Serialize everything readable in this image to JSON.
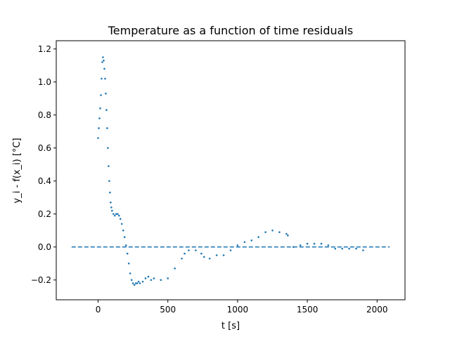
{
  "chart_data": {
    "type": "scatter",
    "title": "Temperature as a function of time residuals",
    "xlabel": "t [s]",
    "ylabel": "y_i - f(x_i) [°C]",
    "xlim": [
      -300,
      2200
    ],
    "ylim": [
      -0.32,
      1.25
    ],
    "xticks": [
      {
        "value": 0,
        "label": "0"
      },
      {
        "value": 500,
        "label": "500"
      },
      {
        "value": 1000,
        "label": "1000"
      },
      {
        "value": 1500,
        "label": "1500"
      },
      {
        "value": 2000,
        "label": "2000"
      }
    ],
    "yticks": [
      {
        "value": -0.2,
        "label": "−0.2"
      },
      {
        "value": 0.0,
        "label": "0.0"
      },
      {
        "value": 0.2,
        "label": "0.2"
      },
      {
        "value": 0.4,
        "label": "0.4"
      },
      {
        "value": 0.6,
        "label": "0.6"
      },
      {
        "value": 0.8,
        "label": "0.8"
      },
      {
        "value": 1.0,
        "label": "1.0"
      },
      {
        "value": 1.2,
        "label": "1.2"
      }
    ],
    "grid": false,
    "series_color": "#1f77b4",
    "reference_line": {
      "y": 0.0,
      "x_range": [
        -190,
        2090
      ],
      "style": "dashed"
    },
    "x": [
      0,
      5,
      10,
      15,
      20,
      25,
      30,
      35,
      40,
      45,
      50,
      55,
      60,
      65,
      70,
      75,
      80,
      85,
      90,
      95,
      100,
      110,
      120,
      130,
      140,
      150,
      160,
      170,
      180,
      190,
      200,
      210,
      220,
      230,
      240,
      250,
      260,
      270,
      280,
      290,
      300,
      320,
      340,
      360,
      380,
      400,
      450,
      500,
      550,
      600,
      620,
      650,
      700,
      740,
      760,
      800,
      850,
      900,
      950,
      1000,
      1050,
      1100,
      1150,
      1200,
      1250,
      1300,
      1350,
      1360,
      1400,
      1450,
      1500,
      1550,
      1600,
      1650,
      1700,
      1750,
      1800,
      1850,
      1900
    ],
    "y": [
      0.66,
      0.72,
      0.78,
      0.84,
      0.92,
      1.02,
      1.12,
      1.15,
      1.13,
      1.08,
      1.02,
      0.93,
      0.83,
      0.72,
      0.6,
      0.49,
      0.4,
      0.33,
      0.27,
      0.24,
      0.22,
      0.2,
      0.19,
      0.2,
      0.2,
      0.19,
      0.17,
      0.14,
      0.1,
      0.06,
      0.01,
      -0.04,
      -0.1,
      -0.16,
      -0.2,
      -0.22,
      -0.23,
      -0.22,
      -0.22,
      -0.21,
      -0.22,
      -0.21,
      -0.19,
      -0.18,
      -0.2,
      -0.19,
      -0.2,
      -0.19,
      -0.13,
      -0.07,
      -0.04,
      -0.02,
      -0.02,
      -0.04,
      -0.06,
      -0.07,
      -0.05,
      -0.05,
      -0.02,
      0.01,
      0.03,
      0.04,
      0.06,
      0.09,
      0.1,
      0.09,
      0.08,
      0.07,
      0.0,
      0.01,
      0.02,
      0.02,
      0.02,
      0.01,
      -0.01,
      -0.01,
      -0.01,
      -0.01,
      -0.02
    ]
  }
}
